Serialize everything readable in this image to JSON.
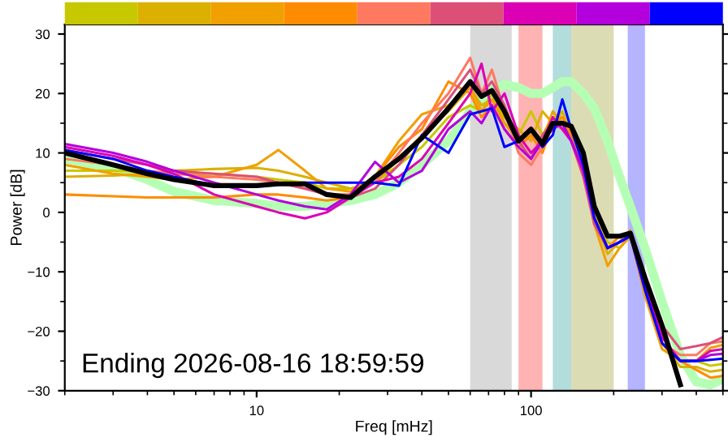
{
  "chart_data": {
    "type": "line",
    "xlabel": "Freq [mHz]",
    "ylabel": "Power [dB]",
    "log": "x",
    "xlim": [
      2,
      500
    ],
    "ylim": [
      -30,
      31.6
    ],
    "xticks": [
      10,
      100
    ],
    "yticks": [
      {
        "value": -30,
        "label": "−30"
      },
      {
        "value": -20,
        "label": "−20"
      },
      {
        "value": -10,
        "label": "−10"
      },
      0,
      10,
      20,
      30
    ],
    "grid": false,
    "legend": false,
    "x": [
      2,
      3,
      4,
      5,
      7,
      10,
      12,
      15,
      18,
      22,
      27,
      33,
      40,
      50,
      60,
      66,
      72,
      80,
      90,
      100,
      110,
      120,
      130,
      140,
      155,
      170,
      190,
      210,
      230,
      260,
      300,
      350,
      400,
      450,
      500
    ],
    "bands": [
      {
        "axis": "x",
        "from": 60,
        "to": 85,
        "color": "#d9d9d9"
      },
      {
        "axis": "x",
        "from": 90,
        "to": 110,
        "color": "#ffb3b3"
      },
      {
        "axis": "x",
        "from": 120,
        "to": 140,
        "color": "#b3dcdc"
      },
      {
        "axis": "x",
        "from": 140,
        "to": 200,
        "color": "#dcdcb4"
      },
      {
        "axis": "x",
        "from": 225,
        "to": 260,
        "color": "#b4b4ff"
      }
    ],
    "series": [
      {
        "color": "#b4ffb4",
        "values": [
          9,
          7.5,
          5.5,
          3.5,
          2,
          1.5,
          1,
          1,
          1.5,
          2,
          3,
          5,
          8,
          12,
          17,
          19,
          20.5,
          21.5,
          21,
          20,
          20,
          21,
          22,
          22,
          20,
          17.5,
          12,
          6,
          1,
          -6,
          -15,
          -24,
          -28.5,
          -29,
          -28
        ]
      },
      {
        "color": "#c8c800",
        "values": [
          7,
          7,
          6.8,
          6.5,
          6.5,
          6,
          5.5,
          5,
          4,
          4,
          5,
          8,
          11,
          16,
          18,
          17,
          20,
          15,
          13,
          17,
          13,
          16,
          16,
          14,
          9,
          0,
          -5,
          -6,
          -4,
          -12,
          -21,
          -25,
          -25,
          -25.8,
          -25.5
        ]
      },
      {
        "color": "#dcb000",
        "values": [
          6,
          6.2,
          6.5,
          7,
          7.3,
          7.5,
          7,
          6,
          5,
          4,
          5,
          9,
          13,
          17,
          21,
          18,
          19,
          16,
          14,
          12,
          17,
          15,
          17,
          13,
          8,
          -1,
          -7,
          -5,
          -3,
          -13,
          -22,
          -26,
          -26,
          -26.8,
          -26.5
        ]
      },
      {
        "color": "#f0a000",
        "values": [
          8,
          6.5,
          6,
          5.5,
          6,
          8,
          10.5,
          7,
          4,
          3.5,
          6,
          12,
          16.5,
          18,
          21,
          17,
          19,
          15,
          12,
          14,
          12,
          17,
          15,
          13,
          7,
          -2,
          -9,
          -6,
          -4,
          -14,
          -23,
          -25,
          -25,
          -22.8,
          -22.3
        ]
      },
      {
        "color": "#ff8c00",
        "values": [
          3,
          2.7,
          2.5,
          2.5,
          2.5,
          3,
          3,
          2.5,
          2,
          2.5,
          6,
          11,
          14,
          22,
          20,
          16,
          18,
          14,
          11,
          13,
          10,
          15,
          16,
          13,
          8,
          -2,
          -6,
          -4,
          -4,
          -13,
          -22,
          -25,
          -26.5,
          -27.8,
          -27.5
        ]
      },
      {
        "color": "#ff7860",
        "values": [
          9,
          8,
          7,
          6.5,
          6,
          5.5,
          5,
          4,
          3,
          3,
          5,
          10,
          15,
          20,
          26,
          20,
          24,
          17,
          10,
          8,
          11,
          15,
          14,
          12,
          7,
          -1,
          -6,
          -5,
          -4,
          -13,
          -22,
          -24,
          -24,
          -22,
          -21.7
        ]
      },
      {
        "color": "#dc5078",
        "values": [
          10.5,
          9,
          8,
          7,
          6.5,
          6,
          5,
          4,
          3,
          2.5,
          4,
          8,
          13,
          19,
          24,
          20,
          22,
          18,
          12,
          9,
          13,
          15,
          15,
          12,
          6,
          -2,
          -6,
          -5,
          -4,
          -12,
          -19,
          -23,
          -22.5,
          -22,
          -21
        ]
      },
      {
        "color": "#dc00b4",
        "values": [
          11,
          9.5,
          8,
          6.5,
          3,
          1,
          0,
          -1,
          0,
          2.5,
          5,
          6,
          9,
          15,
          20,
          25,
          17,
          20,
          13,
          10,
          12,
          16,
          14,
          12,
          7,
          -1,
          -6,
          -5,
          -4,
          -12,
          -21,
          -25,
          -25,
          -23.3,
          -23
        ]
      },
      {
        "color": "#b400dc",
        "values": [
          11.5,
          10,
          8.5,
          7,
          5,
          3,
          2,
          1,
          0.5,
          3,
          8.5,
          5,
          7,
          14,
          17,
          15,
          18,
          14,
          11,
          9,
          12,
          14,
          15,
          12,
          7,
          -1,
          -6,
          -5,
          -4,
          -13,
          -22,
          -25,
          -25,
          -24,
          -23.8
        ]
      },
      {
        "color": "#0000ff",
        "values": [
          10.5,
          9,
          7,
          6,
          4.5,
          4.5,
          4.8,
          5,
          5,
          5,
          5,
          4.5,
          13,
          10,
          16.5,
          17,
          17.5,
          11,
          12,
          14,
          11,
          13,
          19,
          14,
          8,
          -1,
          -6,
          -5,
          -4,
          -13,
          -22,
          -25,
          -25,
          -24.8,
          -24.6
        ]
      },
      {
        "color": "#000000",
        "values": [
          10,
          8,
          6.5,
          5.5,
          4.5,
          4.5,
          4.8,
          4.8,
          3,
          2.5,
          6,
          9,
          12.5,
          17.5,
          22,
          19.5,
          20.5,
          17,
          12,
          14,
          11.5,
          15,
          15,
          14.5,
          10,
          1,
          -4,
          -4,
          -3.5,
          -11,
          -19,
          -29,
          null,
          null,
          null
        ]
      }
    ],
    "annotations": [
      "Ending 2026-08-16 18:59:59"
    ]
  }
}
